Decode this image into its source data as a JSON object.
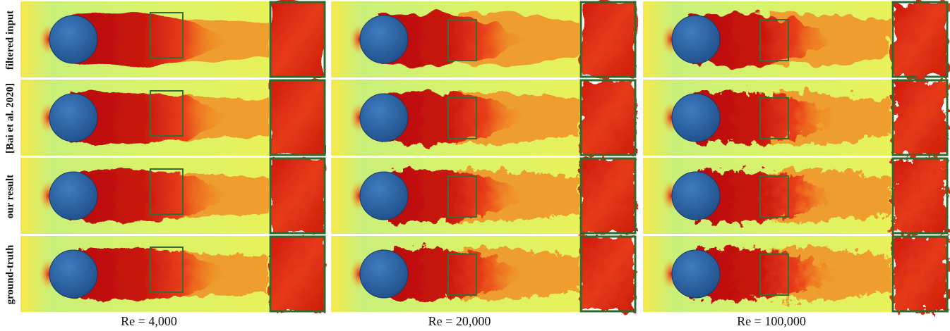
{
  "row_labels": [
    "filtered input",
    "[Bai et al. 2020]",
    "our result",
    "ground-truth"
  ],
  "column_labels": [
    "Re = 4,000",
    "Re = 20,000",
    "Re = 100,000"
  ]
}
